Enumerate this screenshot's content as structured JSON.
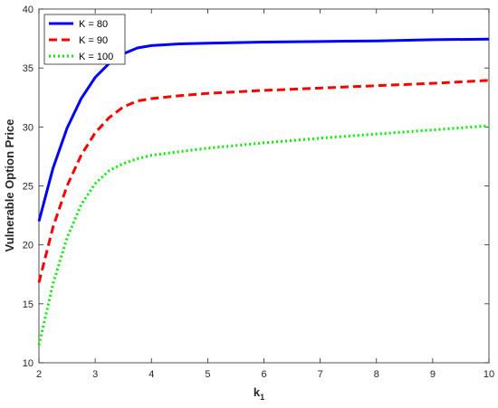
{
  "chart_data": {
    "type": "line",
    "title": "",
    "xlabel_main": "k",
    "xlabel_sub": "1",
    "ylabel": "Vulnerable Option Price",
    "xlim": [
      2,
      10
    ],
    "ylim": [
      10,
      40
    ],
    "grid": false,
    "legend_position": "top-left",
    "x_ticks": [
      2,
      3,
      4,
      5,
      6,
      7,
      8,
      9,
      10
    ],
    "y_ticks": [
      10,
      15,
      20,
      25,
      30,
      35,
      40
    ],
    "x_tick_labels": [
      "2",
      "3",
      "4",
      "5",
      "6",
      "7",
      "8",
      "9",
      "10"
    ],
    "y_tick_labels": [
      "10",
      "15",
      "20",
      "25",
      "30",
      "35",
      "40"
    ],
    "x": [
      2,
      2.25,
      2.5,
      2.75,
      3,
      3.25,
      3.5,
      3.75,
      4,
      4.5,
      5,
      6,
      7,
      8,
      9,
      10
    ],
    "series": [
      {
        "name": "K = 80",
        "color": "#0000ff",
        "dash": "solid",
        "values": [
          22.0,
          26.5,
          29.9,
          32.4,
          34.2,
          35.4,
          36.2,
          36.7,
          36.9,
          37.05,
          37.1,
          37.2,
          37.25,
          37.3,
          37.4,
          37.45
        ]
      },
      {
        "name": "K = 90",
        "color": "#ff0000",
        "dash": "dashed",
        "values": [
          16.8,
          21.5,
          25.0,
          27.6,
          29.5,
          30.8,
          31.7,
          32.2,
          32.4,
          32.65,
          32.85,
          33.1,
          33.3,
          33.5,
          33.7,
          33.95
        ]
      },
      {
        "name": "K = 100",
        "color": "#00ee00",
        "dash": "dotted",
        "values": [
          11.5,
          16.7,
          20.6,
          23.4,
          25.2,
          26.3,
          26.9,
          27.3,
          27.6,
          27.9,
          28.2,
          28.65,
          29.05,
          29.4,
          29.75,
          30.1
        ]
      }
    ]
  }
}
